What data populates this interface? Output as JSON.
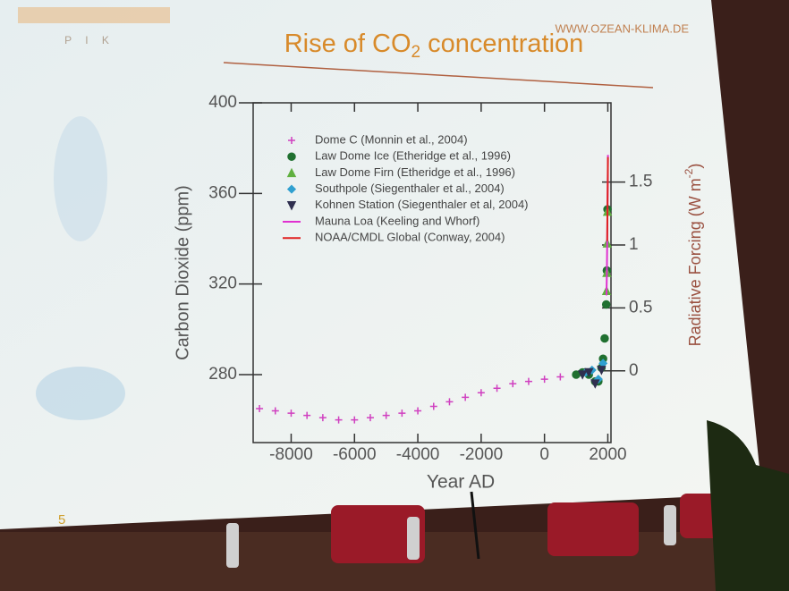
{
  "slide": {
    "logo": "P I K",
    "url": "WWW.OZEAN-KLIMA.DE",
    "page_number": "5",
    "title": {
      "text": "Rise of CO",
      "subscript": "2",
      "rest": " concentration"
    }
  },
  "chart_data": {
    "type": "scatter",
    "x_label": "Year AD",
    "y_label": "Carbon Dioxide (ppm)",
    "y2_label": {
      "text": "Radiative Forcing (W m",
      "superscript": "-2",
      "rest": ")"
    },
    "xlim": [
      -9200,
      2100
    ],
    "xticks": [
      -8000,
      -6000,
      -4000,
      -2000,
      0,
      2000
    ],
    "ylim": [
      250,
      400
    ],
    "yticks": [
      280,
      320,
      360,
      400
    ],
    "y2lim": [
      -0.57,
      2.13
    ],
    "y2ticks": [
      0,
      0.5,
      1,
      1.5
    ],
    "y2_color": "#9a5040",
    "legend": "upper left",
    "series": [
      {
        "name": "Dome C (Monnin et al., 2004)",
        "color": "#d040c0",
        "marker": "plus",
        "x": [
          -9000,
          -8500,
          -8000,
          -7500,
          -7000,
          -6500,
          -6000,
          -5500,
          -5000,
          -4500,
          -4000,
          -3500,
          -3000,
          -2500,
          -2000,
          -1500,
          -1000,
          -500,
          0,
          500,
          1000
        ],
        "values": [
          265,
          264,
          263,
          262,
          261,
          260,
          260,
          261,
          262,
          263,
          264,
          266,
          268,
          270,
          272,
          274,
          276,
          277,
          278,
          279,
          280
        ]
      },
      {
        "name": "Law Dome Ice (Etheridge et al., 1996)",
        "color": "#207030",
        "marker": "dot",
        "x": [
          1000,
          1200,
          1400,
          1600,
          1700,
          1800,
          1850,
          1900,
          1950,
          1970,
          1990
        ],
        "values": [
          280,
          281,
          280,
          277,
          277,
          283,
          287,
          296,
          311,
          326,
          353
        ]
      },
      {
        "name": "Law Dome Firn (Etheridge et al., 1996)",
        "color": "#60b040",
        "marker": "triangle",
        "x": [
          1960,
          1970,
          1980,
          1990
        ],
        "values": [
          317,
          325,
          338,
          352
        ]
      },
      {
        "name": "Southpole (Siegenthaler et al., 2004)",
        "color": "#30a0d0",
        "marker": "diamond",
        "x": [
          1300,
          1500,
          1700,
          1850
        ],
        "values": [
          281,
          282,
          278,
          285
        ]
      },
      {
        "name": "Kohnen Station (Siegenthaler et al, 2004)",
        "color": "#303050",
        "marker": "triangle-down",
        "x": [
          1200,
          1400,
          1600,
          1800
        ],
        "values": [
          280,
          281,
          276,
          282
        ]
      },
      {
        "name": "Mauna Loa (Keeling and Whorf)",
        "color": "#e030d0",
        "marker": "line",
        "x": [
          1958,
          1970,
          1980,
          1990,
          2000,
          2004
        ],
        "values": [
          315,
          325,
          338,
          354,
          369,
          377
        ]
      },
      {
        "name": "NOAA/CMDL Global  (Conway, 2004)",
        "color": "#e02020",
        "marker": "line",
        "x": [
          1980,
          1990,
          2000,
          2004
        ],
        "values": [
          339,
          354,
          369,
          376
        ]
      }
    ]
  }
}
